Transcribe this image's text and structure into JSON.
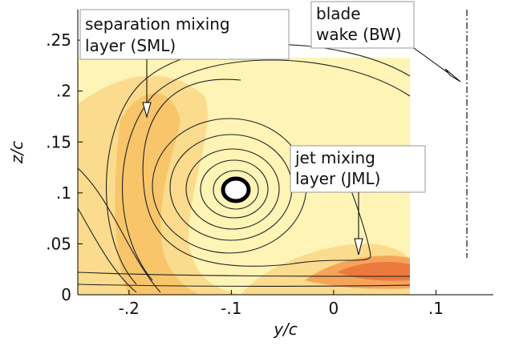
{
  "chart_data": {
    "type": "contour",
    "xlabel": "y/c",
    "ylabel": "z/c",
    "xlim": [
      -0.25,
      0.16
    ],
    "ylim": [
      0,
      0.28
    ],
    "xticks": [
      {
        "value": -0.2,
        "label": "-.2"
      },
      {
        "value": -0.1,
        "label": "-.1"
      },
      0,
      {
        "value": 0.1,
        "label": ".1"
      }
    ],
    "yticks": [
      0,
      {
        "value": 0.05,
        "label": ".05"
      },
      {
        "value": 0.1,
        "label": ".1"
      },
      {
        "value": 0.15,
        "label": ".15"
      },
      {
        "value": 0.2,
        "label": ".2"
      },
      {
        "value": 0.25,
        "label": ".25"
      }
    ],
    "annotations": [
      {
        "lines": [
          "separation mixing",
          "layer (SML)"
        ]
      },
      {
        "lines": [
          "blade",
          "wake (BW)"
        ]
      },
      {
        "lines": [
          "jet mixing",
          "layer (JML)"
        ]
      }
    ]
  }
}
